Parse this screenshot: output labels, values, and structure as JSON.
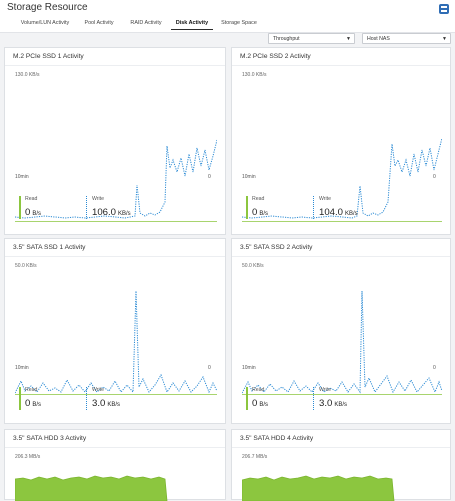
{
  "header": {
    "title": "Storage Resource",
    "tabs": [
      "Volume/LUN Activity",
      "Pool Activity",
      "RAID Activity",
      "Disk Activity",
      "Storage Space"
    ],
    "active_tab": "Disk Activity"
  },
  "filters": {
    "metric": "Throughput",
    "target": "Host NAS"
  },
  "panels": [
    {
      "title": "M.2 PCIe SSD 1 Activity",
      "ymax": "130.0 KB/s",
      "x_left": "10min",
      "x_right": "0",
      "read_label": "Read",
      "read_value": "0",
      "read_unit": "B/s",
      "write_label": "Write",
      "write_value": "106.0",
      "write_unit": "KB/s"
    },
    {
      "title": "M.2 PCIe SSD 2 Activity",
      "ymax": "130.0 KB/s",
      "x_left": "10min",
      "x_right": "0",
      "read_label": "Read",
      "read_value": "0",
      "read_unit": "B/s",
      "write_label": "Write",
      "write_value": "104.0",
      "write_unit": "KB/s"
    },
    {
      "title": "3.5\" SATA SSD 1 Activity",
      "ymax": "50.0 KB/s",
      "x_left": "10min",
      "x_right": "0",
      "read_label": "Read",
      "read_value": "0",
      "read_unit": "B/s",
      "write_label": "Write",
      "write_value": "3.0",
      "write_unit": "KB/s"
    },
    {
      "title": "3.5\" SATA SSD 2 Activity",
      "ymax": "50.0 KB/s",
      "x_left": "10min",
      "x_right": "0",
      "read_label": "Read",
      "read_value": "0",
      "read_unit": "B/s",
      "write_label": "Write",
      "write_value": "3.0",
      "write_unit": "KB/s"
    },
    {
      "title": "3.5\" SATA HDD 3 Activity",
      "ymax": "206.3 MB/s"
    },
    {
      "title": "3.5\" SATA HDD 4 Activity",
      "ymax": "206.7 MB/s"
    }
  ],
  "colors": {
    "read": "#8cc63f",
    "write": "#2a8ad4",
    "area": "#8cc63f"
  }
}
